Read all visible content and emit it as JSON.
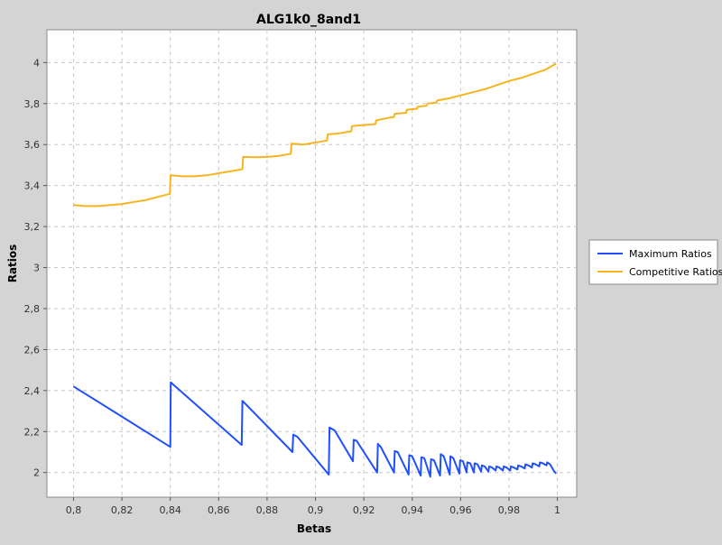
{
  "chart_data": {
    "type": "line",
    "title": "ALG1k0_8and1",
    "xlabel": "Betas",
    "ylabel": "Ratios",
    "xlim": [
      0.789,
      1.008
    ],
    "ylim": [
      1.88,
      4.16
    ],
    "x_ticks": [
      0.8,
      0.82,
      0.84,
      0.86,
      0.88,
      0.9,
      0.92,
      0.94,
      0.96,
      0.98,
      1.0
    ],
    "x_tick_labels": [
      "0,8",
      "0,82",
      "0,84",
      "0,86",
      "0,88",
      "0,9",
      "0,92",
      "0,94",
      "0,96",
      "0,98",
      "1"
    ],
    "y_ticks": [
      2.0,
      2.2,
      2.4,
      2.6,
      2.8,
      3.0,
      3.2,
      3.4,
      3.6,
      3.8,
      4.0
    ],
    "y_tick_labels": [
      "2",
      "2,2",
      "2,4",
      "2,6",
      "2,8",
      "3",
      "3,2",
      "3,4",
      "3,6",
      "3,8",
      "4"
    ],
    "grid": true,
    "legend_position": "right",
    "series": [
      {
        "name": "Maximum Ratios",
        "color": "#1f4fff",
        "points": [
          [
            0.8,
            2.42
          ],
          [
            0.84,
            2.125
          ],
          [
            0.8402,
            2.44
          ],
          [
            0.8695,
            2.135
          ],
          [
            0.8698,
            2.35
          ],
          [
            0.8905,
            2.1
          ],
          [
            0.8908,
            2.185
          ],
          [
            0.8925,
            2.175
          ],
          [
            0.9055,
            1.99
          ],
          [
            0.9058,
            2.22
          ],
          [
            0.908,
            2.205
          ],
          [
            0.9155,
            2.055
          ],
          [
            0.9158,
            2.16
          ],
          [
            0.917,
            2.155
          ],
          [
            0.9255,
            2.0
          ],
          [
            0.9258,
            2.14
          ],
          [
            0.927,
            2.125
          ],
          [
            0.9325,
            2.0
          ],
          [
            0.9328,
            2.105
          ],
          [
            0.934,
            2.1
          ],
          [
            0.9385,
            1.99
          ],
          [
            0.9388,
            2.085
          ],
          [
            0.94,
            2.08
          ],
          [
            0.9435,
            1.985
          ],
          [
            0.9438,
            2.075
          ],
          [
            0.945,
            2.07
          ],
          [
            0.9475,
            1.98
          ],
          [
            0.9478,
            2.065
          ],
          [
            0.949,
            2.06
          ],
          [
            0.9515,
            1.985
          ],
          [
            0.9518,
            2.09
          ],
          [
            0.953,
            2.08
          ],
          [
            0.9555,
            1.99
          ],
          [
            0.9558,
            2.08
          ],
          [
            0.957,
            2.07
          ],
          [
            0.9595,
            1.995
          ],
          [
            0.9598,
            2.06
          ],
          [
            0.961,
            2.055
          ],
          [
            0.9625,
            2.0
          ],
          [
            0.9628,
            2.05
          ],
          [
            0.964,
            2.045
          ],
          [
            0.9655,
            2.0
          ],
          [
            0.9658,
            2.045
          ],
          [
            0.967,
            2.04
          ],
          [
            0.9685,
            2.005
          ],
          [
            0.9688,
            2.035
          ],
          [
            0.97,
            2.03
          ],
          [
            0.9715,
            2.005
          ],
          [
            0.9718,
            2.03
          ],
          [
            0.973,
            2.025
          ],
          [
            0.9745,
            2.01
          ],
          [
            0.9748,
            2.03
          ],
          [
            0.976,
            2.025
          ],
          [
            0.9775,
            2.01
          ],
          [
            0.9778,
            2.03
          ],
          [
            0.979,
            2.025
          ],
          [
            0.9805,
            2.01
          ],
          [
            0.9808,
            2.03
          ],
          [
            0.982,
            2.025
          ],
          [
            0.9835,
            2.015
          ],
          [
            0.9838,
            2.035
          ],
          [
            0.985,
            2.03
          ],
          [
            0.9865,
            2.02
          ],
          [
            0.9868,
            2.04
          ],
          [
            0.988,
            2.035
          ],
          [
            0.9895,
            2.025
          ],
          [
            0.9898,
            2.045
          ],
          [
            0.991,
            2.04
          ],
          [
            0.9925,
            2.03
          ],
          [
            0.9928,
            2.05
          ],
          [
            0.994,
            2.045
          ],
          [
            0.9955,
            2.035
          ],
          [
            0.9958,
            2.05
          ],
          [
            0.997,
            2.04
          ],
          [
            0.9985,
            2.01
          ],
          [
            0.9995,
            1.995
          ]
        ]
      },
      {
        "name": "Competitive Ratios",
        "color": "#f7b41e",
        "points": [
          [
            0.8,
            3.305
          ],
          [
            0.805,
            3.3
          ],
          [
            0.81,
            3.3
          ],
          [
            0.815,
            3.305
          ],
          [
            0.82,
            3.31
          ],
          [
            0.825,
            3.32
          ],
          [
            0.83,
            3.33
          ],
          [
            0.835,
            3.345
          ],
          [
            0.8398,
            3.36
          ],
          [
            0.8401,
            3.45
          ],
          [
            0.845,
            3.445
          ],
          [
            0.85,
            3.445
          ],
          [
            0.855,
            3.45
          ],
          [
            0.86,
            3.46
          ],
          [
            0.865,
            3.47
          ],
          [
            0.8698,
            3.48
          ],
          [
            0.8701,
            3.54
          ],
          [
            0.875,
            3.538
          ],
          [
            0.88,
            3.54
          ],
          [
            0.885,
            3.545
          ],
          [
            0.8898,
            3.555
          ],
          [
            0.8901,
            3.605
          ],
          [
            0.895,
            3.6
          ],
          [
            0.9,
            3.61
          ],
          [
            0.9048,
            3.62
          ],
          [
            0.9051,
            3.65
          ],
          [
            0.91,
            3.655
          ],
          [
            0.9148,
            3.665
          ],
          [
            0.9151,
            3.69
          ],
          [
            0.92,
            3.695
          ],
          [
            0.9248,
            3.7
          ],
          [
            0.9251,
            3.718
          ],
          [
            0.93,
            3.73
          ],
          [
            0.9325,
            3.735
          ],
          [
            0.9328,
            3.75
          ],
          [
            0.9375,
            3.755
          ],
          [
            0.9378,
            3.77
          ],
          [
            0.942,
            3.775
          ],
          [
            0.9423,
            3.785
          ],
          [
            0.946,
            3.79
          ],
          [
            0.9463,
            3.8
          ],
          [
            0.95,
            3.805
          ],
          [
            0.9503,
            3.815
          ],
          [
            0.955,
            3.825
          ],
          [
            0.96,
            3.84
          ],
          [
            0.965,
            3.855
          ],
          [
            0.97,
            3.87
          ],
          [
            0.975,
            3.89
          ],
          [
            0.98,
            3.91
          ],
          [
            0.985,
            3.925
          ],
          [
            0.99,
            3.945
          ],
          [
            0.995,
            3.965
          ],
          [
            0.9995,
            3.995
          ]
        ]
      }
    ]
  }
}
